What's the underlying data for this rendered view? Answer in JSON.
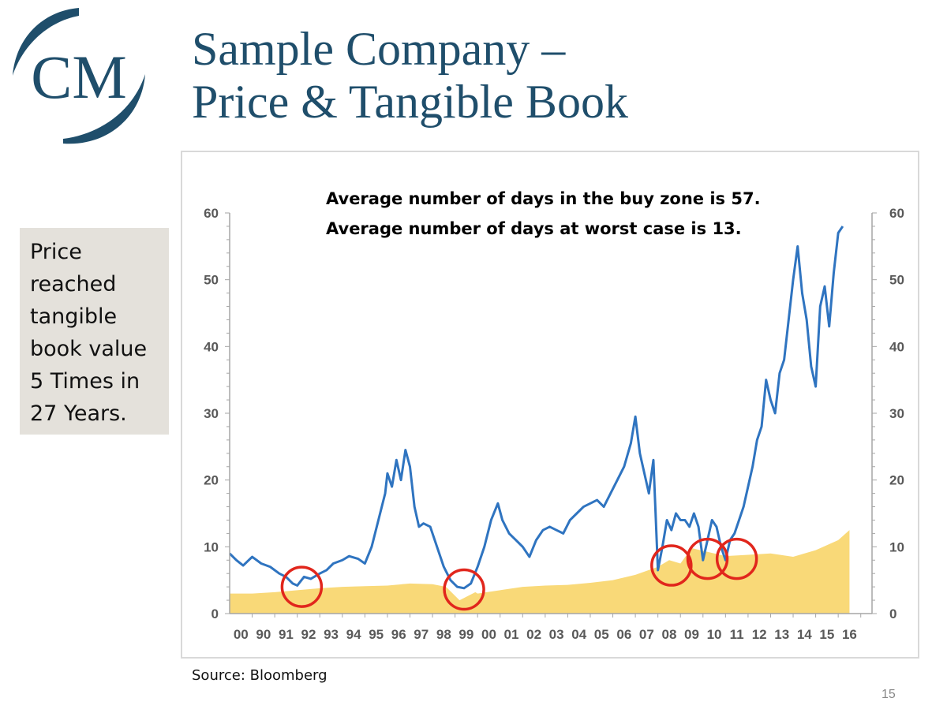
{
  "slide": {
    "title_line_1": "Sample Company –",
    "title_line_2": "Price & Tangible Book",
    "logo_text": "CM",
    "callout_lines": [
      "Price",
      "reached",
      "tangible",
      "book value",
      "5 Times in",
      "27 Years."
    ],
    "source": "Source: Bloomberg",
    "page_number": "15"
  },
  "colors": {
    "title": "#1f4e6b",
    "price_line": "#2f74c0",
    "book_fill": "#f9d978",
    "circle": "#e1261c",
    "axis": "#a6a6a6"
  },
  "chart_data": {
    "type": "line",
    "title": "",
    "annotations": [
      "Average number of days in the buy zone is 57.",
      "Average number of days at worst case is 13."
    ],
    "categories": [
      "00",
      "90",
      "91",
      "92",
      "93",
      "94",
      "95",
      "96",
      "97",
      "98",
      "99",
      "00",
      "01",
      "02",
      "03",
      "04",
      "05",
      "06",
      "07",
      "08",
      "09",
      "10",
      "11",
      "12",
      "13",
      "14",
      "15",
      "16"
    ],
    "ylim": [
      0,
      60
    ],
    "yticks": [
      0,
      10,
      20,
      30,
      40,
      50,
      60
    ],
    "series": [
      {
        "name": "Price",
        "kind": "line",
        "x": [
          0,
          0.3,
          0.6,
          1.0,
          1.4,
          1.8,
          2.2,
          2.5,
          2.8,
          3.0,
          3.3,
          3.6,
          4.0,
          4.3,
          4.6,
          5.0,
          5.3,
          5.7,
          6.0,
          6.3,
          6.6,
          6.9,
          7.0,
          7.2,
          7.4,
          7.6,
          7.8,
          8.0,
          8.2,
          8.4,
          8.6,
          8.9,
          9.2,
          9.5,
          9.8,
          10.1,
          10.4,
          10.7,
          11.0,
          11.3,
          11.6,
          11.9,
          12.1,
          12.4,
          12.7,
          13.0,
          13.3,
          13.6,
          13.9,
          14.2,
          14.5,
          14.8,
          15.1,
          15.4,
          15.7,
          16.0,
          16.3,
          16.6,
          16.9,
          17.2,
          17.5,
          17.8,
          18.0,
          18.2,
          18.4,
          18.6,
          18.8,
          19.0,
          19.2,
          19.4,
          19.6,
          19.8,
          20.0,
          20.2,
          20.4,
          20.6,
          20.8,
          21.0,
          21.2,
          21.4,
          21.6,
          21.8,
          22.0,
          22.2,
          22.4,
          22.6,
          22.8,
          23.0,
          23.2,
          23.4,
          23.6,
          23.8,
          24.0,
          24.2,
          24.4,
          24.6,
          24.8,
          25.0,
          25.2,
          25.4,
          25.6,
          25.8,
          26.0,
          26.2,
          26.4,
          26.6,
          26.8,
          27.0,
          27.2
        ],
        "values": [
          9,
          8,
          7.2,
          8.5,
          7.5,
          7,
          6,
          5.5,
          4.5,
          4.2,
          5.5,
          5.2,
          6,
          6.5,
          7.5,
          8,
          8.6,
          8.2,
          7.5,
          10,
          14,
          18,
          21,
          19,
          23,
          20,
          24.5,
          22,
          16,
          13,
          13.5,
          13,
          10,
          7,
          5,
          4,
          3.8,
          4.5,
          7,
          10,
          14,
          16.5,
          14,
          12,
          11,
          10,
          8.5,
          11,
          12.5,
          13,
          12.5,
          12,
          14,
          15,
          16,
          16.5,
          17,
          16,
          18,
          20,
          22,
          25.5,
          29.5,
          24,
          21,
          18,
          23,
          6.5,
          10,
          14,
          12.5,
          15,
          14,
          14,
          13,
          15,
          13,
          8,
          11,
          14,
          13,
          10,
          8,
          11,
          12,
          14,
          16,
          19,
          22,
          26,
          28,
          35,
          32,
          30,
          36,
          38,
          44,
          50,
          55,
          48,
          44,
          37,
          34,
          46,
          49,
          43,
          51,
          57,
          58
        ]
      },
      {
        "name": "Tangible Book",
        "kind": "area",
        "x": [
          0,
          1.0,
          2.0,
          3.0,
          4.0,
          5.0,
          6.0,
          7.0,
          8.0,
          9.0,
          9.6,
          10.2,
          10.9,
          11.0,
          12.0,
          13.0,
          14.0,
          15.0,
          16.0,
          17.0,
          18.0,
          19.0,
          19.5,
          20.0,
          20.5,
          21.0,
          22.0,
          23.0,
          24.0,
          25.0,
          26.0,
          27.0,
          27.5
        ],
        "values": [
          3,
          3,
          3.2,
          3.5,
          3.8,
          4,
          4.1,
          4.2,
          4.5,
          4.4,
          4.0,
          2.0,
          3.2,
          3.0,
          3.5,
          4.0,
          4.2,
          4.3,
          4.6,
          5.0,
          5.8,
          7.0,
          8.0,
          7.5,
          9.8,
          9.4,
          8.6,
          8.8,
          9.0,
          8.5,
          9.5,
          11.0,
          12.5
        ]
      }
    ],
    "highlight_circles": [
      {
        "x": 3.2,
        "y": 4.0
      },
      {
        "x": 10.4,
        "y": 3.6
      },
      {
        "x": 19.6,
        "y": 7.2
      },
      {
        "x": 21.2,
        "y": 8.2
      },
      {
        "x": 22.5,
        "y": 8.2
      }
    ]
  }
}
